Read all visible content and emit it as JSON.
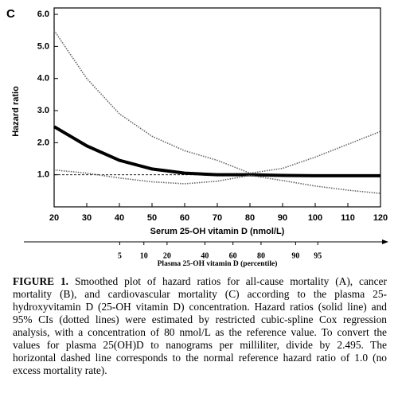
{
  "chart_data": {
    "type": "line",
    "panel": "C",
    "ylabel": "Hazard ratio",
    "xlabel": "Serum 25-OH vitamin D (nmol/L)",
    "x2label": "Plasma 25-OH vitamin D (percentile)",
    "x": [
      20,
      30,
      40,
      50,
      60,
      70,
      80,
      90,
      100,
      110,
      120
    ],
    "series": [
      {
        "name": "Hazard ratio",
        "color": "#000000",
        "style": "solid",
        "values": [
          2.5,
          1.9,
          1.45,
          1.18,
          1.05,
          1.0,
          1.0,
          0.98,
          0.97,
          0.97,
          0.97
        ]
      },
      {
        "name": "Upper 95% CI",
        "color": "#666666",
        "style": "dotted",
        "values": [
          5.5,
          4.0,
          2.9,
          2.2,
          1.75,
          1.45,
          1.05,
          1.2,
          1.55,
          1.95,
          2.35
        ]
      },
      {
        "name": "Lower 95% CI",
        "color": "#666666",
        "style": "dotted",
        "values": [
          1.15,
          1.05,
          0.9,
          0.78,
          0.72,
          0.8,
          0.98,
          0.82,
          0.65,
          0.52,
          0.42
        ]
      }
    ],
    "reference_line": 1.0,
    "xlim": [
      20,
      120
    ],
    "xticks": [
      20,
      30,
      40,
      50,
      60,
      70,
      80,
      90,
      100,
      110,
      120
    ],
    "ylim": [
      0,
      6.2
    ],
    "yticks": [
      {
        "value": 1,
        "label": "1.0"
      },
      {
        "value": 2,
        "label": "2.0"
      },
      {
        "value": 3,
        "label": "3.0"
      },
      {
        "value": 4,
        "label": "4.0"
      },
      {
        "value": 5,
        "label": "5.0"
      },
      {
        "value": 6,
        "label": "6.0"
      }
    ],
    "x2ticks": [
      {
        "value": 40.1,
        "label": "5"
      },
      {
        "value": 47.5,
        "label": "10"
      },
      {
        "value": 54.6,
        "label": "20"
      },
      {
        "value": 66.2,
        "label": "40"
      },
      {
        "value": 74.8,
        "label": "60"
      },
      {
        "value": 83.4,
        "label": "80"
      },
      {
        "value": 94,
        "label": "90"
      },
      {
        "value": 100.8,
        "label": "95"
      }
    ]
  },
  "caption": {
    "label": "FIGURE 1.",
    "text": "Smoothed plot of hazard ratios for all-cause mortality (A), cancer mortality (B), and cardiovascular mortality (C) according to the plasma 25-hydroxyvitamin D (25-OH vitamin D) concentration. Hazard ratios (solid line) and 95% CIs (dotted lines) were estimated by restricted cubic-spline Cox regression analysis, with a concentration of 80 nmol/L as the reference value. To convert the values for plasma 25(OH)D to nanograms per milliliter, divide by 2.495. The horizontal dashed line corresponds to the normal reference hazard ratio of 1.0 (no excess mortality rate)."
  }
}
